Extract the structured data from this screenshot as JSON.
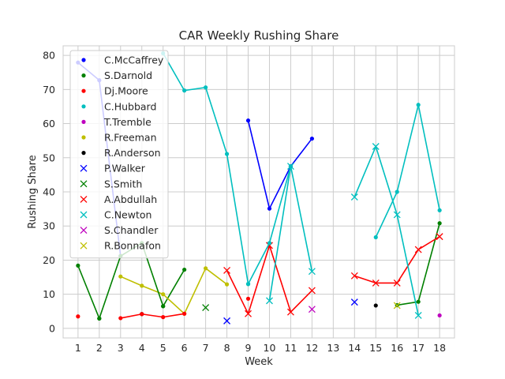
{
  "chart_data": {
    "type": "line",
    "title": "CAR Weekly Rushing Share",
    "xlabel": "Week",
    "ylabel": "Rushing Share",
    "xlim": [
      0.3,
      18.7
    ],
    "ylim": [
      -2.8,
      82.8
    ],
    "xticks": [
      1,
      2,
      3,
      4,
      5,
      6,
      7,
      8,
      9,
      10,
      11,
      12,
      13,
      14,
      15,
      16,
      17,
      18
    ],
    "yticks": [
      0,
      10,
      20,
      30,
      40,
      50,
      60,
      70,
      80
    ],
    "grid": true,
    "legend_position": "top-left",
    "series": [
      {
        "name": "C.McCaffrey",
        "color": "#0000ff",
        "marker": "dot",
        "x": [
          1,
          2,
          3,
          9,
          10,
          11,
          12,
          14,
          15
        ],
        "y": [
          77.9,
          72.7,
          21.2,
          60.9,
          35.1,
          47.5,
          55.6,
          null,
          null
        ]
      },
      {
        "name": "S.Darnold",
        "color": "#008000",
        "marker": "dot",
        "x": [
          1,
          2,
          3,
          4,
          5,
          6,
          9,
          16,
          17,
          18
        ],
        "y": [
          18.4,
          2.9,
          null,
          null,
          6.5,
          17.2,
          13.0,
          6.8,
          7.8,
          30.8
        ]
      },
      {
        "name": "Dj.Moore",
        "color": "#ff0000",
        "marker": "dot",
        "x": [
          1,
          9
        ],
        "y": [
          3.5,
          8.7
        ]
      },
      {
        "name": "C.Hubbard",
        "color": "#00bfbf",
        "marker": "dot",
        "x": [
          5,
          6,
          7,
          8,
          9,
          15,
          16,
          17,
          18
        ],
        "y": [
          80.6,
          69.7,
          70.6,
          51.1,
          13.0,
          26.7,
          40.0,
          65.5,
          34.6
        ]
      },
      {
        "name": "T.Tremble",
        "color": "#bf00bf",
        "marker": "dot",
        "x": [
          18
        ],
        "y": [
          3.8
        ]
      },
      {
        "name": "R.Freeman",
        "color": "#bfbf00",
        "marker": "dot",
        "x": [
          3,
          4,
          5,
          6,
          7,
          8
        ],
        "y": [
          15.2,
          12.5,
          10.0,
          4.3,
          17.6,
          12.9
        ]
      },
      {
        "name": "R.Anderson",
        "color": "#000000",
        "marker": "dot",
        "x": [
          4,
          15
        ],
        "y": [
          4.2,
          6.7
        ]
      },
      {
        "name": "P.Walker",
        "color": "#0000ff",
        "marker": "x",
        "x": [
          8,
          14
        ],
        "y": [
          2.2,
          7.7
        ]
      },
      {
        "name": "S.Smith",
        "color": "#008000",
        "marker": "x",
        "x": [
          7
        ],
        "y": [
          6.1
        ]
      },
      {
        "name": "A.Abdullah",
        "color": "#ff0000",
        "marker": "x",
        "x": [
          8,
          9,
          10,
          11,
          12,
          14,
          15,
          16,
          17,
          18
        ],
        "y": [
          17.0,
          4.3,
          24.3,
          4.8,
          11.1,
          15.4,
          13.3,
          13.3,
          23.1,
          26.9
        ]
      },
      {
        "name": "C.Newton",
        "color": "#00bfbf",
        "marker": "x",
        "x": [
          10,
          11,
          12,
          14,
          15,
          16,
          17
        ],
        "y": [
          8.1,
          47.5,
          16.7,
          38.5,
          53.3,
          33.3,
          3.8
        ]
      },
      {
        "name": "S.Chandler",
        "color": "#bf00bf",
        "marker": "x",
        "x": [
          12
        ],
        "y": [
          5.6
        ]
      },
      {
        "name": "R.Bonnafon",
        "color": "#bfbf00",
        "marker": "x",
        "x": [
          16
        ],
        "y": [
          6.7
        ]
      }
    ],
    "extra_segments": [
      {
        "series": "S.Darnold",
        "x": [
          2,
          3,
          4,
          5
        ],
        "y": [
          2.9,
          21.2,
          25.0,
          6.5
        ]
      },
      {
        "series": "Dj.Moore",
        "x": [
          3,
          4,
          5,
          6
        ],
        "y": [
          3.0,
          4.2,
          3.3,
          4.3
        ]
      },
      {
        "series": "C.Hubbard",
        "x": [
          9,
          10,
          11
        ],
        "y": [
          13.0,
          25.0,
          47.5
        ]
      }
    ]
  }
}
